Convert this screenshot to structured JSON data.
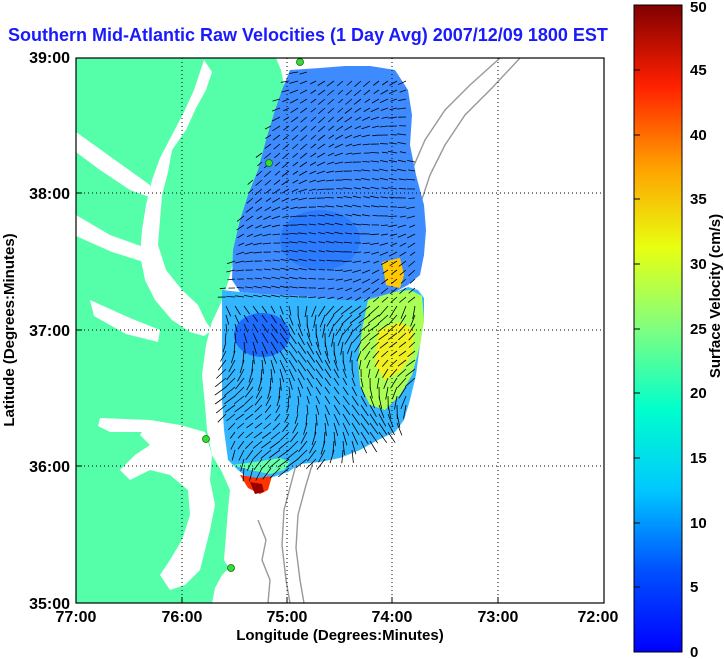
{
  "title": "Southern Mid-Atlantic Raw Velocities (1 Day Avg) 2007/12/09 1800 EST",
  "map": {
    "x_axis": {
      "label": "Longitude (Degrees:Minutes)",
      "ticks": [
        "77:00",
        "76:00",
        "75:00",
        "74:00",
        "73:00",
        "72:00"
      ]
    },
    "y_axis": {
      "label": "Latitude (Degrees:Minutes)",
      "ticks": [
        "39:00",
        "38:00",
        "37:00",
        "36:00",
        "35:00"
      ]
    },
    "grid": "dotted",
    "land_color": "#55ffaa",
    "bathymetry_color": "#999999",
    "vector_color": "#000000",
    "station_color": "#33dd33"
  },
  "colorbar": {
    "label": "Surface Velocity (cm/s)",
    "ticks": [
      "0",
      "5",
      "10",
      "15",
      "20",
      "25",
      "30",
      "35",
      "40",
      "45",
      "50"
    ],
    "min": 0,
    "max": 50,
    "colormap": "jet"
  }
}
